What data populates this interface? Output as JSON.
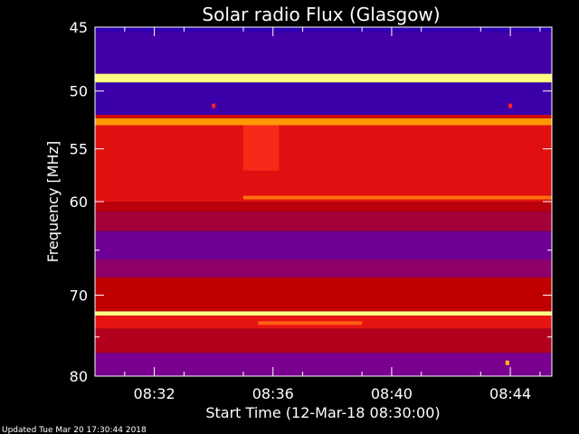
{
  "chart_data": {
    "type": "heatmap",
    "title": "Solar radio Flux (Glasgow)",
    "ylabel": "Frequency [MHz]",
    "xlabel": "Start Time (12-Mar-18 08:30:00)",
    "footer": "Updated Tue Mar 20 17:30:44 2018",
    "x_range_minutes": [
      0,
      15.4
    ],
    "x_ticks": [
      {
        "minute": 2,
        "label": "08:32"
      },
      {
        "minute": 6,
        "label": "08:36"
      },
      {
        "minute": 10,
        "label": "08:40"
      },
      {
        "minute": 14,
        "label": "08:44"
      }
    ],
    "y_range": [
      45,
      80
    ],
    "y_scale": "log",
    "y_ticks_major": [
      {
        "mhz": 45,
        "label": "45"
      },
      {
        "mhz": 50,
        "label": "50"
      },
      {
        "mhz": 55,
        "label": "55"
      },
      {
        "mhz": 60,
        "label": "60"
      },
      {
        "mhz": 70,
        "label": "70"
      },
      {
        "mhz": 80,
        "label": "80"
      }
    ],
    "y_ticks_minor": [
      65,
      75
    ],
    "colormap": {
      "low": "#1f00b8",
      "mid_low": "#7a0090",
      "mid": "#c00000",
      "mid_high": "#ff2020",
      "high": "#ffb000",
      "peak": "#ffff80"
    },
    "bands": [
      {
        "from_mhz": 45.0,
        "to_mhz": 45.4,
        "level": 0.05
      },
      {
        "from_mhz": 45.4,
        "to_mhz": 48.6,
        "level": 0.1
      },
      {
        "from_mhz": 48.6,
        "to_mhz": 49.3,
        "level": 1.0
      },
      {
        "from_mhz": 49.3,
        "to_mhz": 52.0,
        "level": 0.08
      },
      {
        "from_mhz": 52.0,
        "to_mhz": 52.3,
        "level": 0.55
      },
      {
        "from_mhz": 52.3,
        "to_mhz": 52.9,
        "level": 0.85
      },
      {
        "from_mhz": 52.9,
        "to_mhz": 60.0,
        "level": 0.6
      },
      {
        "from_mhz": 60.0,
        "to_mhz": 61.0,
        "level": 0.48
      },
      {
        "from_mhz": 61.0,
        "to_mhz": 63.0,
        "level": 0.4
      },
      {
        "from_mhz": 63.0,
        "to_mhz": 66.0,
        "level": 0.22
      },
      {
        "from_mhz": 66.0,
        "to_mhz": 68.0,
        "level": 0.32
      },
      {
        "from_mhz": 68.0,
        "to_mhz": 71.9,
        "level": 0.5
      },
      {
        "from_mhz": 71.9,
        "to_mhz": 72.4,
        "level": 1.0
      },
      {
        "from_mhz": 72.4,
        "to_mhz": 74.0,
        "level": 0.62
      },
      {
        "from_mhz": 74.0,
        "to_mhz": 77.0,
        "level": 0.45
      },
      {
        "from_mhz": 77.0,
        "to_mhz": 80.0,
        "level": 0.25
      }
    ],
    "features": [
      {
        "kind": "line",
        "mhz": 59.6,
        "from_minute": 5.0,
        "to_minute": 15.4,
        "level": 0.8
      },
      {
        "kind": "burst",
        "mhz_from": 52.9,
        "mhz_to": 57.0,
        "from_minute": 5.0,
        "to_minute": 6.2,
        "level": 0.72
      },
      {
        "kind": "line",
        "mhz": 73.3,
        "from_minute": 5.5,
        "to_minute": 9.0,
        "level": 0.78
      },
      {
        "kind": "dot",
        "mhz": 51.2,
        "minute": 4.0,
        "level": 0.7
      },
      {
        "kind": "dot",
        "mhz": 51.2,
        "minute": 14.0,
        "level": 0.7
      },
      {
        "kind": "dot",
        "mhz": 78.2,
        "minute": 13.9,
        "level": 0.9
      }
    ]
  }
}
